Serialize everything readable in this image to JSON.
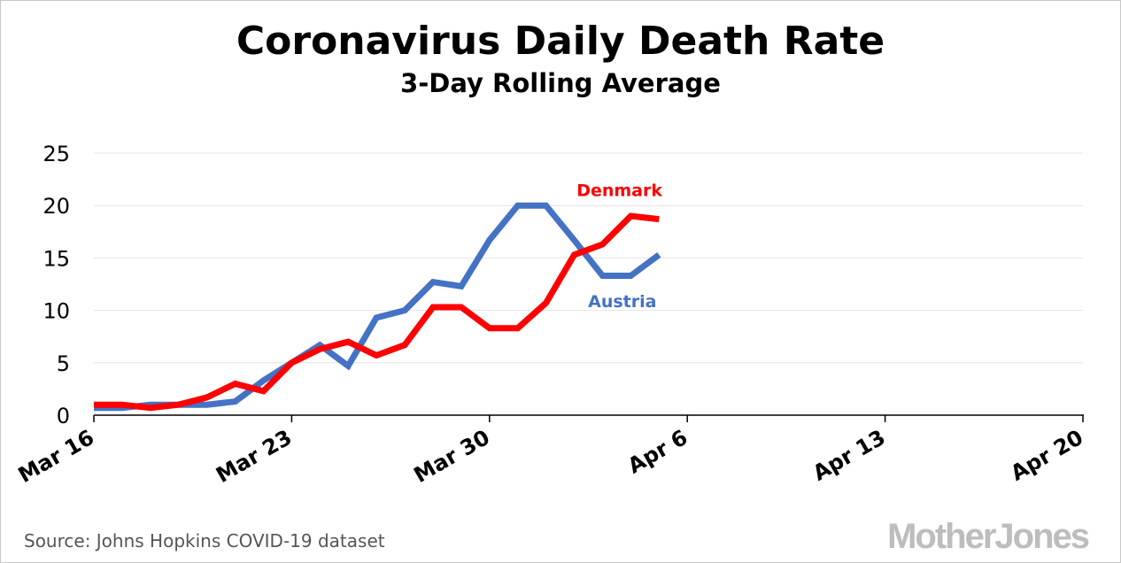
{
  "chart_data": {
    "type": "line",
    "title": "Coronavirus Daily Death Rate",
    "subtitle": "3-Day Rolling Average",
    "xlabel": "",
    "ylabel": "",
    "ylim": [
      0,
      25
    ],
    "yticks": [
      "0",
      "5",
      "10",
      "15",
      "20",
      "25"
    ],
    "xticks": [
      "Mar 16",
      "Mar 23",
      "Mar 30",
      "Apr 6",
      "Apr 13",
      "Apr 20"
    ],
    "xlim_days": [
      0,
      35
    ],
    "grid": true,
    "series": [
      {
        "name": "Austria",
        "color": "#4472C4",
        "x": [
          0,
          1,
          2,
          3,
          4,
          5,
          6,
          7,
          8,
          9,
          10,
          11,
          12,
          13,
          14,
          15,
          16,
          17,
          18,
          19,
          20
        ],
        "values": [
          0.7,
          0.7,
          1.0,
          1.0,
          1.0,
          1.3,
          3.3,
          5.0,
          6.7,
          4.7,
          9.3,
          10.0,
          12.7,
          12.3,
          16.7,
          20.0,
          20.0,
          16.7,
          13.3,
          13.3,
          15.3
        ]
      },
      {
        "name": "Denmark",
        "color": "#FF0000",
        "x": [
          0,
          1,
          2,
          3,
          4,
          5,
          6,
          7,
          8,
          9,
          10,
          11,
          12,
          13,
          14,
          15,
          16,
          17,
          18,
          19,
          20
        ],
        "values": [
          1.0,
          1.0,
          0.7,
          1.0,
          1.7,
          3.0,
          2.3,
          5.0,
          6.3,
          7.0,
          5.7,
          6.7,
          10.3,
          10.3,
          8.3,
          8.3,
          10.7,
          15.3,
          16.3,
          19.0,
          18.7
        ]
      }
    ]
  },
  "footer": {
    "source": "Source: Johns Hopkins COVID-19 dataset",
    "logo": "MotherJones"
  }
}
